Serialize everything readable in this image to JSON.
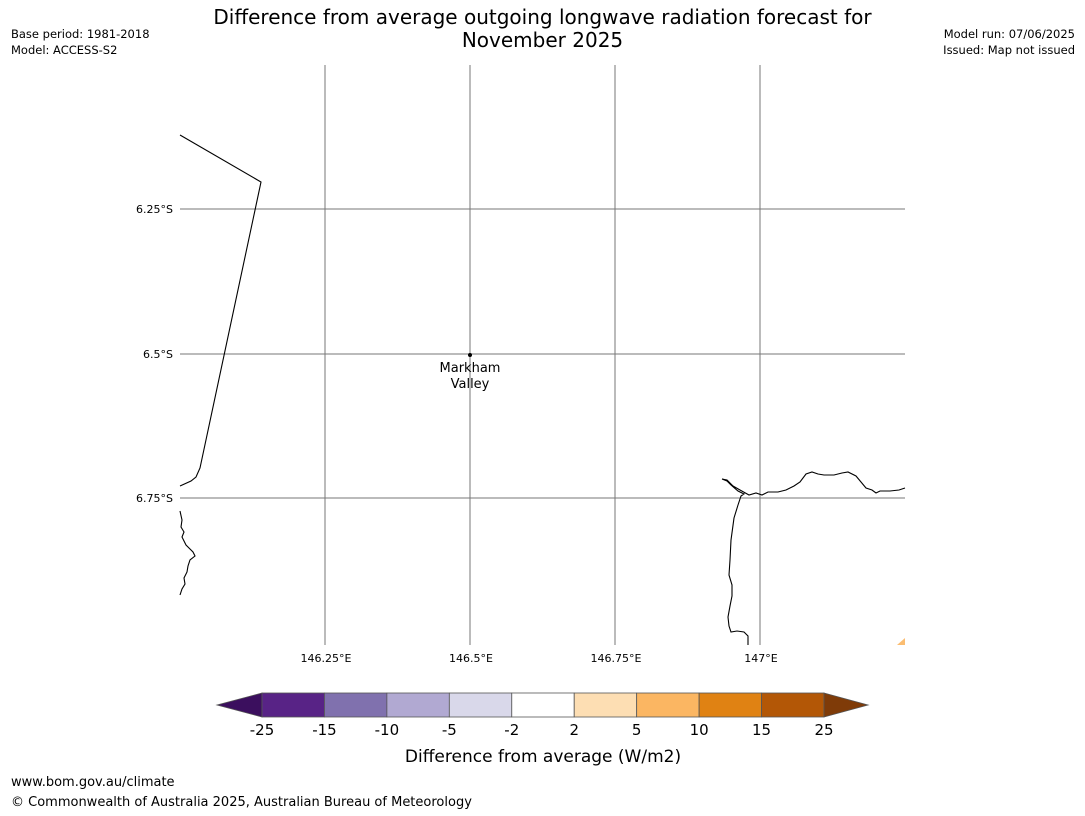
{
  "header": {
    "title_line1": "Difference from average outgoing longwave radiation forecast for",
    "title_line2": "November 2025",
    "base_period": "Base period: 1981-2018",
    "model": "Model: ACCESS-S2",
    "model_run": "Model run: 07/06/2025",
    "issued": "Issued: Map not issued"
  },
  "map": {
    "lat_labels": [
      "6.25°S",
      "6.5°S",
      "6.75°S"
    ],
    "lon_labels": [
      "146.25°E",
      "146.5°E",
      "146.75°E",
      "147°E"
    ],
    "place": {
      "name_line1": "Markham",
      "name_line2": "Valley"
    }
  },
  "colorbar": {
    "label": "Difference from average (W/m2)",
    "ticks": [
      "-25",
      "-15",
      "-10",
      "-5",
      "-2",
      "2",
      "5",
      "10",
      "15",
      "25"
    ],
    "colors": [
      "#3b0f5e",
      "#582386",
      "#8071ae",
      "#b1a9d2",
      "#d9d8ea",
      "#ffffff",
      "#fddeb3",
      "#fbb662",
      "#e08213",
      "#b35706",
      "#7f3b08"
    ]
  },
  "footer": {
    "url": "www.bom.gov.au/climate",
    "copyright": "© Commonwealth of Australia 2025, Australian Bureau of Meteorology"
  }
}
